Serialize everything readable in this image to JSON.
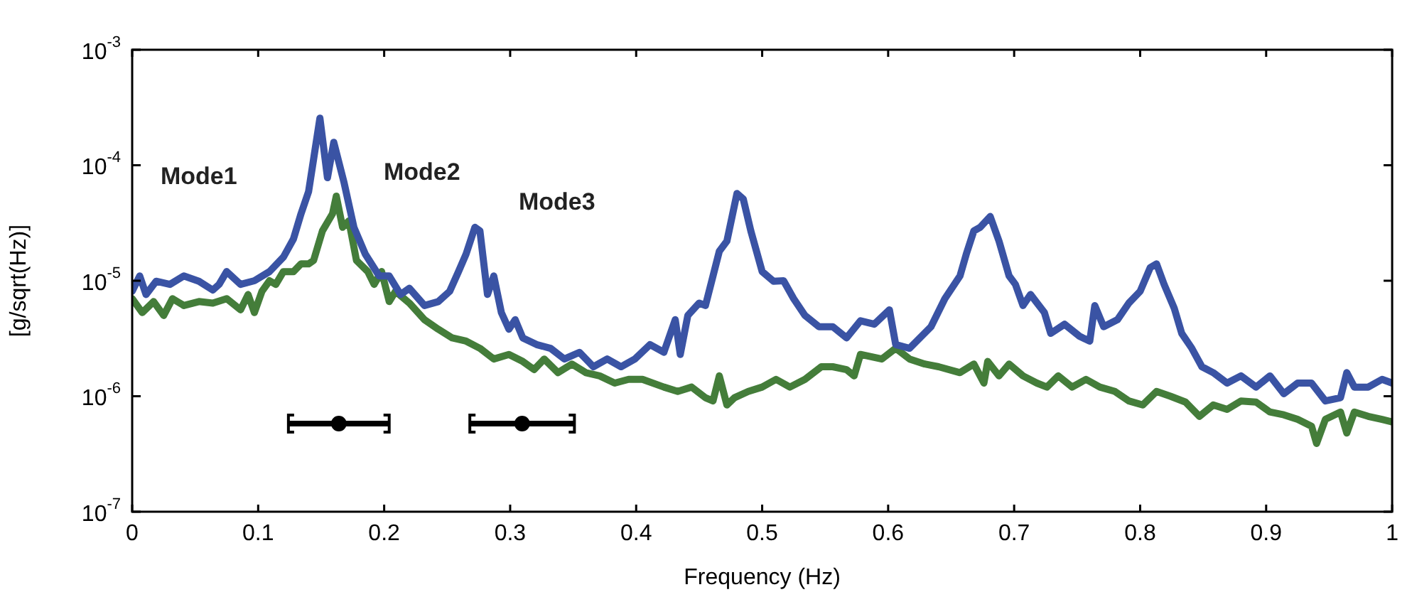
{
  "chart_data": {
    "type": "line",
    "xlabel": "Frequency (Hz)",
    "ylabel": "[g/sqrt(Hz)]",
    "log": "y",
    "grid": false,
    "legend": false,
    "marker": "none",
    "line_style": "solid",
    "xlim": [
      0,
      1
    ],
    "xticks": [
      0,
      0.1,
      0.2,
      0.3,
      0.4,
      0.5,
      0.6,
      0.7,
      0.8,
      0.9,
      1
    ],
    "ylim": [
      1e-07,
      0.001
    ],
    "yticks": [
      {
        "value": 1e-07,
        "label": "10$^{-7}$"
      },
      {
        "value": 1e-06,
        "label": "10$^{-6}$"
      },
      {
        "value": 1e-05,
        "label": "10$^{-5}$"
      },
      {
        "value": 0.0001,
        "label": "10$^{-4}$"
      },
      {
        "value": 0.001,
        "label": "10$^{-3}$"
      }
    ],
    "annotations": [
      "Mode1",
      "Mode2",
      "Mode3"
    ],
    "series": [
      {
        "color": "#3a53a4",
        "x": [
          0,
          0.006,
          0.011,
          0.019,
          0.03,
          0.041,
          0.053,
          0.064,
          0.069,
          0.075,
          0.086,
          0.097,
          0.109,
          0.12,
          0.128,
          0.134,
          0.14,
          0.144,
          0.149,
          0.155,
          0.16,
          0.168,
          0.176,
          0.185,
          0.196,
          0.204,
          0.213,
          0.22,
          0.232,
          0.243,
          0.252,
          0.259,
          0.265,
          0.272,
          0.276,
          0.282,
          0.287,
          0.293,
          0.299,
          0.304,
          0.31,
          0.321,
          0.332,
          0.343,
          0.355,
          0.366,
          0.377,
          0.388,
          0.399,
          0.411,
          0.422,
          0.431,
          0.435,
          0.441,
          0.45,
          0.455,
          0.461,
          0.466,
          0.472,
          0.48,
          0.485,
          0.491,
          0.5,
          0.509,
          0.517,
          0.525,
          0.534,
          0.545,
          0.556,
          0.567,
          0.578,
          0.589,
          0.601,
          0.606,
          0.617,
          0.634,
          0.645,
          0.657,
          0.662,
          0.668,
          0.673,
          0.681,
          0.688,
          0.696,
          0.701,
          0.707,
          0.713,
          0.724,
          0.729,
          0.74,
          0.752,
          0.76,
          0.764,
          0.771,
          0.782,
          0.791,
          0.8,
          0.808,
          0.813,
          0.819,
          0.827,
          0.833,
          0.841,
          0.849,
          0.858,
          0.869,
          0.88,
          0.892,
          0.903,
          0.914,
          0.925,
          0.936,
          0.947,
          0.959,
          0.964,
          0.97,
          0.981,
          0.992,
          1
        ],
        "values": [
          8.1e-06,
          1.1e-05,
          7.6e-06,
          9.9e-06,
          9.3e-06,
          1.1e-05,
          9.9e-06,
          8.3e-06,
          9.3e-06,
          1.2e-05,
          9.3e-06,
          1e-05,
          1.2e-05,
          1.6e-05,
          2.3e-05,
          3.8e-05,
          5.9e-05,
          0.000113,
          0.000256,
          7.8e-05,
          0.000158,
          7.2e-05,
          2.9e-05,
          1.7e-05,
          1.1e-05,
          1.1e-05,
          7.6e-06,
          8.6e-06,
          6.1e-06,
          6.6e-06,
          8.1e-06,
          1.2e-05,
          1.7e-05,
          2.9e-05,
          2.7e-05,
          7.6e-06,
          1.1e-05,
          5.3e-06,
          3.8e-06,
          4.6e-06,
          3.2e-06,
          2.8e-06,
          2.6e-06,
          2.1e-06,
          2.4e-06,
          1.8e-06,
          2.1e-06,
          1.8e-06,
          2.1e-06,
          2.8e-06,
          2.4e-06,
          4.6e-06,
          2.3e-06,
          5e-06,
          6.4e-06,
          6.1e-06,
          1.1e-05,
          1.8e-05,
          2.2e-05,
          5.7e-05,
          5.1e-05,
          2.7e-05,
          1.2e-05,
          9.9e-06,
          1e-05,
          7e-06,
          5e-06,
          4e-06,
          4e-06,
          3.2e-06,
          4.5e-06,
          4.2e-06,
          5.6e-06,
          2.8e-06,
          2.6e-06,
          4e-06,
          7e-06,
          1.1e-05,
          1.7e-05,
          2.7e-05,
          2.9e-05,
          3.6e-05,
          2.2e-05,
          1.1e-05,
          9.3e-06,
          6.1e-06,
          7.6e-06,
          5.3e-06,
          3.5e-06,
          4.2e-06,
          3.3e-06,
          3e-06,
          6.1e-06,
          4e-06,
          4.6e-06,
          6.4e-06,
          8.1e-06,
          1.3e-05,
          1.4e-05,
          9.3e-06,
          5.8e-06,
          3.5e-06,
          2.6e-06,
          1.8e-06,
          1.6e-06,
          1.3e-06,
          1.5e-06,
          1.2e-06,
          1.5e-06,
          1.05e-06,
          1.3e-06,
          1.3e-06,
          9.1e-07,
          9.7e-07,
          1.6e-06,
          1.2e-06,
          1.2e-06,
          1.4e-06,
          1.3e-06
        ]
      },
      {
        "color": "#447d3a",
        "x": [
          0,
          0.008,
          0.017,
          0.025,
          0.032,
          0.041,
          0.053,
          0.064,
          0.075,
          0.086,
          0.092,
          0.097,
          0.103,
          0.109,
          0.114,
          0.12,
          0.128,
          0.134,
          0.14,
          0.144,
          0.151,
          0.159,
          0.162,
          0.167,
          0.172,
          0.178,
          0.187,
          0.192,
          0.198,
          0.204,
          0.209,
          0.22,
          0.232,
          0.243,
          0.254,
          0.265,
          0.276,
          0.287,
          0.299,
          0.31,
          0.319,
          0.327,
          0.338,
          0.349,
          0.36,
          0.371,
          0.383,
          0.394,
          0.405,
          0.422,
          0.433,
          0.444,
          0.455,
          0.461,
          0.466,
          0.472,
          0.478,
          0.489,
          0.5,
          0.511,
          0.522,
          0.534,
          0.547,
          0.556,
          0.567,
          0.573,
          0.578,
          0.595,
          0.606,
          0.617,
          0.629,
          0.64,
          0.657,
          0.668,
          0.676,
          0.679,
          0.688,
          0.696,
          0.707,
          0.718,
          0.726,
          0.735,
          0.746,
          0.757,
          0.768,
          0.78,
          0.791,
          0.802,
          0.813,
          0.824,
          0.836,
          0.847,
          0.858,
          0.869,
          0.88,
          0.892,
          0.903,
          0.914,
          0.925,
          0.936,
          0.94,
          0.947,
          0.959,
          0.964,
          0.97,
          0.981,
          0.992,
          1
        ],
        "values": [
          7e-06,
          5.3e-06,
          6.6e-06,
          5e-06,
          7e-06,
          6.1e-06,
          6.6e-06,
          6.4e-06,
          7e-06,
          5.6e-06,
          7.6e-06,
          5.3e-06,
          8.1e-06,
          1e-05,
          9.3e-06,
          1.2e-05,
          1.2e-05,
          1.4e-05,
          1.4e-05,
          1.5e-05,
          2.7e-05,
          3.8e-05,
          5.4e-05,
          2.9e-05,
          3.3e-05,
          1.5e-05,
          1.2e-05,
          9.3e-06,
          1.2e-05,
          6.6e-06,
          8.1e-06,
          6.4e-06,
          4.6e-06,
          3.8e-06,
          3.2e-06,
          3e-06,
          2.6e-06,
          2.1e-06,
          2.3e-06,
          2e-06,
          1.7e-06,
          2.1e-06,
          1.6e-06,
          1.9e-06,
          1.6e-06,
          1.5e-06,
          1.3e-06,
          1.4e-06,
          1.4e-06,
          1.2e-06,
          1.1e-06,
          1.2e-06,
          9.7e-07,
          9.1e-07,
          1.5e-06,
          8.4e-07,
          9.7e-07,
          1.1e-06,
          1.2e-06,
          1.4e-06,
          1.2e-06,
          1.4e-06,
          1.8e-06,
          1.8e-06,
          1.7e-06,
          1.5e-06,
          2.3e-06,
          2.1e-06,
          2.6e-06,
          2.1e-06,
          1.9e-06,
          1.8e-06,
          1.6e-06,
          1.9e-06,
          1.3e-06,
          2e-06,
          1.5e-06,
          1.9e-06,
          1.5e-06,
          1.3e-06,
          1.2e-06,
          1.5e-06,
          1.2e-06,
          1.4e-06,
          1.2e-06,
          1.1e-06,
          9.1e-07,
          8.4e-07,
          1.1e-06,
          1e-06,
          8.9e-07,
          6.7e-07,
          8.4e-07,
          7.7e-07,
          9.1e-07,
          8.9e-07,
          7.3e-07,
          6.9e-07,
          6.3e-07,
          5.5e-07,
          3.9e-07,
          6.3e-07,
          7.3e-07,
          4.8e-07,
          7.3e-07,
          6.7e-07,
          6.3e-07,
          6e-07
        ]
      },
      {
        "type": "scatter",
        "marker": "circle",
        "color": "#000000",
        "x": [
          0.164,
          0.3095
        ],
        "values": [
          5.8e-07,
          5.8e-07
        ],
        "xerrors": [
          0.04,
          0.0415
        ]
      }
    ]
  }
}
